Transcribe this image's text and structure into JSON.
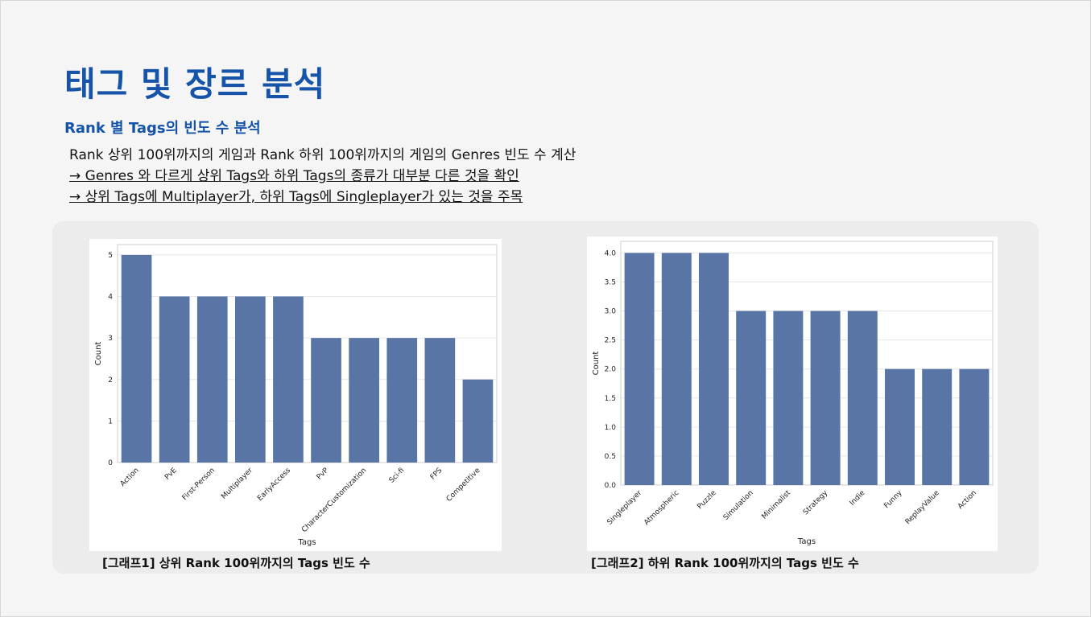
{
  "title": "태그 및 장르 분석",
  "subtitle": "Rank 별 Tags의 빈도 수 분석",
  "lines": [
    "Rank 상위 100위까지의 게임과 Rank 하위 100위까지의 게임의 Genres 빈도 수 계산",
    "→ Genres 와 다르게 상위 Tags와 하위 Tags의 종류가 대부분 다른 것을 확인",
    "→ 상위 Tags에 Multiplayer가, 하위 Tags에 Singleplayer가 있는 것을 주목"
  ],
  "captions": [
    "[그래프1] 상위 Rank 100위까지의 Tags 빈도 수",
    "[그래프2] 하위 Rank 100위까지의 Tags 빈도 수"
  ],
  "colors": {
    "bar": "#5875a6",
    "title": "#1554a8",
    "grid": "#e6e6e6"
  },
  "chart_data": [
    {
      "type": "bar",
      "categories": [
        "Action",
        "PvE",
        "First-Person",
        "Multiplayer",
        "EarlyAccess",
        "PvP",
        "CharacterCustomization",
        "Sci-fi",
        "FPS",
        "Competitive"
      ],
      "values": [
        5,
        4,
        4,
        4,
        4,
        3,
        3,
        3,
        3,
        2
      ],
      "xlabel": "Tags",
      "ylabel": "Count",
      "ylim": [
        0,
        5.25
      ],
      "yticks": [
        "0",
        "1",
        "2",
        "3",
        "4",
        "5"
      ],
      "grid": true
    },
    {
      "type": "bar",
      "categories": [
        "Singleplayer",
        "Atmospheric",
        "Puzzle",
        "Simulation",
        "Minimalist",
        "Strategy",
        "Indie",
        "Funny",
        "ReplayValue",
        "Action"
      ],
      "values": [
        4,
        4,
        4,
        3,
        3,
        3,
        3,
        2,
        2,
        2
      ],
      "xlabel": "Tags",
      "ylabel": "Count",
      "ylim": [
        0,
        4.2
      ],
      "yticks": [
        "0.0",
        "0.5",
        "1.0",
        "1.5",
        "2.0",
        "2.5",
        "3.0",
        "3.5",
        "4.0"
      ],
      "grid": true
    }
  ]
}
